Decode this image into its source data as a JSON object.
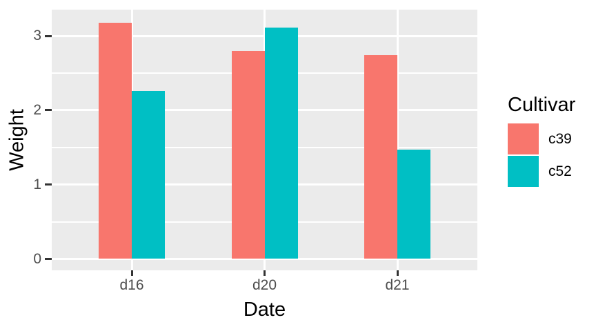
{
  "chart_data": {
    "type": "bar",
    "title": "",
    "xlabel": "Date",
    "ylabel": "Weight",
    "categories": [
      "d16",
      "d20",
      "d21"
    ],
    "series": [
      {
        "name": "c39",
        "color": "#F8766D",
        "values": [
          3.18,
          2.8,
          2.74
        ]
      },
      {
        "name": "c52",
        "color": "#00BFC4",
        "values": [
          2.26,
          3.11,
          1.47
        ]
      }
    ],
    "ylim": [
      0,
      3.35
    ],
    "y_major_ticks": [
      0,
      1,
      2,
      3
    ],
    "y_minor_ticks": [
      0.5,
      1.5,
      2.5
    ],
    "grid": true,
    "bar_layout": "dodge",
    "legend": {
      "title": "Cultivar",
      "position": "right"
    },
    "style": {
      "panel_background": "#EBEBEB",
      "grid_major_color": "#FFFFFF",
      "grid_minor_color": "#FFFFFF",
      "tick_label_color": "#4D4D4D",
      "axis_title_color": "#000000",
      "legend_text_color": "#000000",
      "tick_mark_color": "#333333",
      "figure_background": "#FFFFFF"
    }
  }
}
